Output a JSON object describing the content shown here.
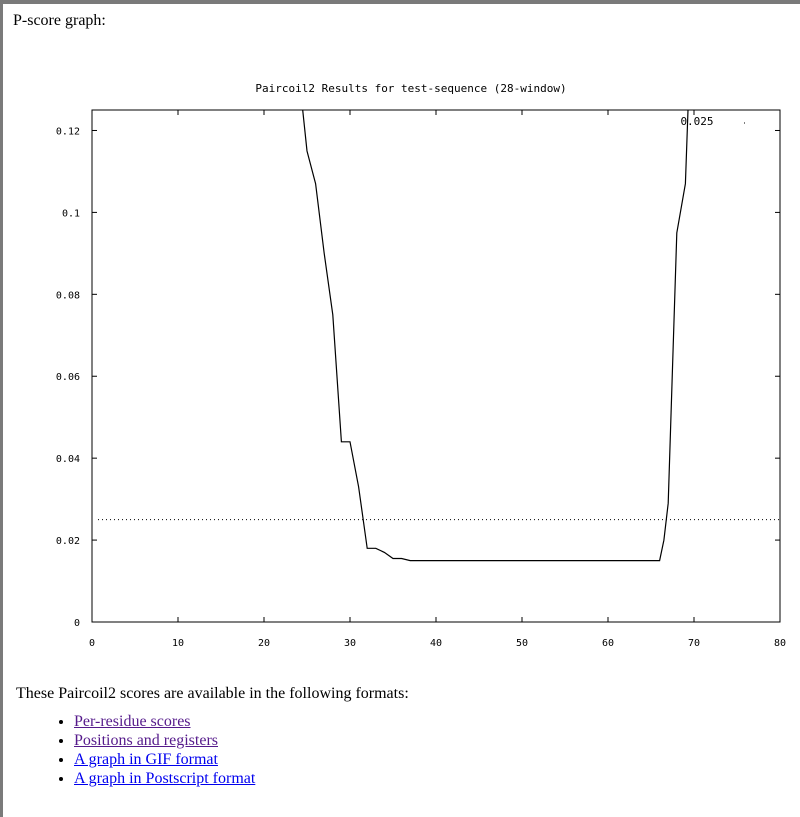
{
  "page": {
    "heading": "P-score graph:",
    "formats_text": "These Paircoil2 scores are available in the following formats:",
    "links": [
      {
        "label": "Per-residue scores",
        "visited": true
      },
      {
        "label": "Positions and registers",
        "visited": true
      },
      {
        "label": "A graph in GIF format",
        "visited": false
      },
      {
        "label": "A graph in Postscript format",
        "visited": false
      }
    ]
  },
  "chart_data": {
    "type": "line",
    "title": "Paircoil2 Results for test-sequence  (28-window)",
    "xlabel": "",
    "ylabel": "",
    "xlim": [
      0,
      80
    ],
    "ylim": [
      0,
      0.125
    ],
    "xticks": [
      0,
      10,
      20,
      30,
      40,
      50,
      60,
      70,
      80
    ],
    "xtick_labels": [
      "0",
      "10",
      "20",
      "30",
      "40",
      "50",
      "60",
      "70",
      "80"
    ],
    "yticks": [
      0,
      0.02,
      0.04,
      0.06,
      0.08,
      0.1,
      0.12
    ],
    "ytick_labels": [
      "0",
      "0.02",
      "0.04",
      "0.06",
      "0.08",
      "0.1",
      "0.12"
    ],
    "threshold": {
      "value": 0.025,
      "label": "0.025",
      "style": "dotted"
    },
    "grid": false,
    "series": [
      {
        "x": [
          24.5,
          25,
          26,
          27,
          28,
          29,
          30,
          31,
          32,
          33,
          34,
          35,
          36,
          37,
          40,
          45,
          50,
          55,
          60,
          63,
          66,
          66.5,
          67,
          68,
          69,
          69.3
        ],
        "y": [
          0.125,
          0.115,
          0.107,
          0.09,
          0.075,
          0.044,
          0.044,
          0.033,
          0.018,
          0.018,
          0.017,
          0.0155,
          0.0155,
          0.015,
          0.015,
          0.015,
          0.015,
          0.015,
          0.015,
          0.015,
          0.015,
          0.02,
          0.029,
          0.095,
          0.107,
          0.125
        ]
      }
    ]
  }
}
